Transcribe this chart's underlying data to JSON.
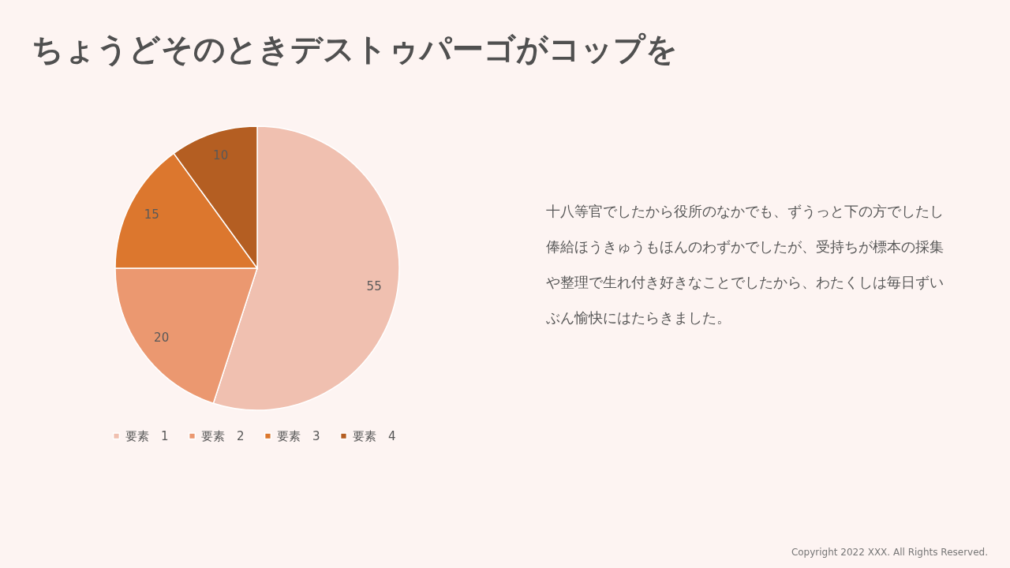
{
  "chart_data": {
    "type": "pie",
    "title": "ちょうどそのときデストゥパーゴがコップを",
    "categories": [
      "要素　1",
      "要素　2",
      "要素　3",
      "要素　4"
    ],
    "values": [
      55,
      20,
      15,
      10
    ],
    "colors": [
      "#f0c0b0",
      "#eb9870",
      "#dc772e",
      "#b45e22"
    ],
    "data_labels": true,
    "legend": "bottom",
    "annotations": [
      "十八等官でしたから役所のなかでも、ずうっと下の方でしたし俸給ほうきゅうもほんのわずかでしたが、受持ちが標本の採集や整理で生れ付き好きなことでしたから、わたくしは毎日ずいぶん愉快にはたらきました。",
      "Copyright 2022 XXX. All Rights Reserved."
    ]
  }
}
